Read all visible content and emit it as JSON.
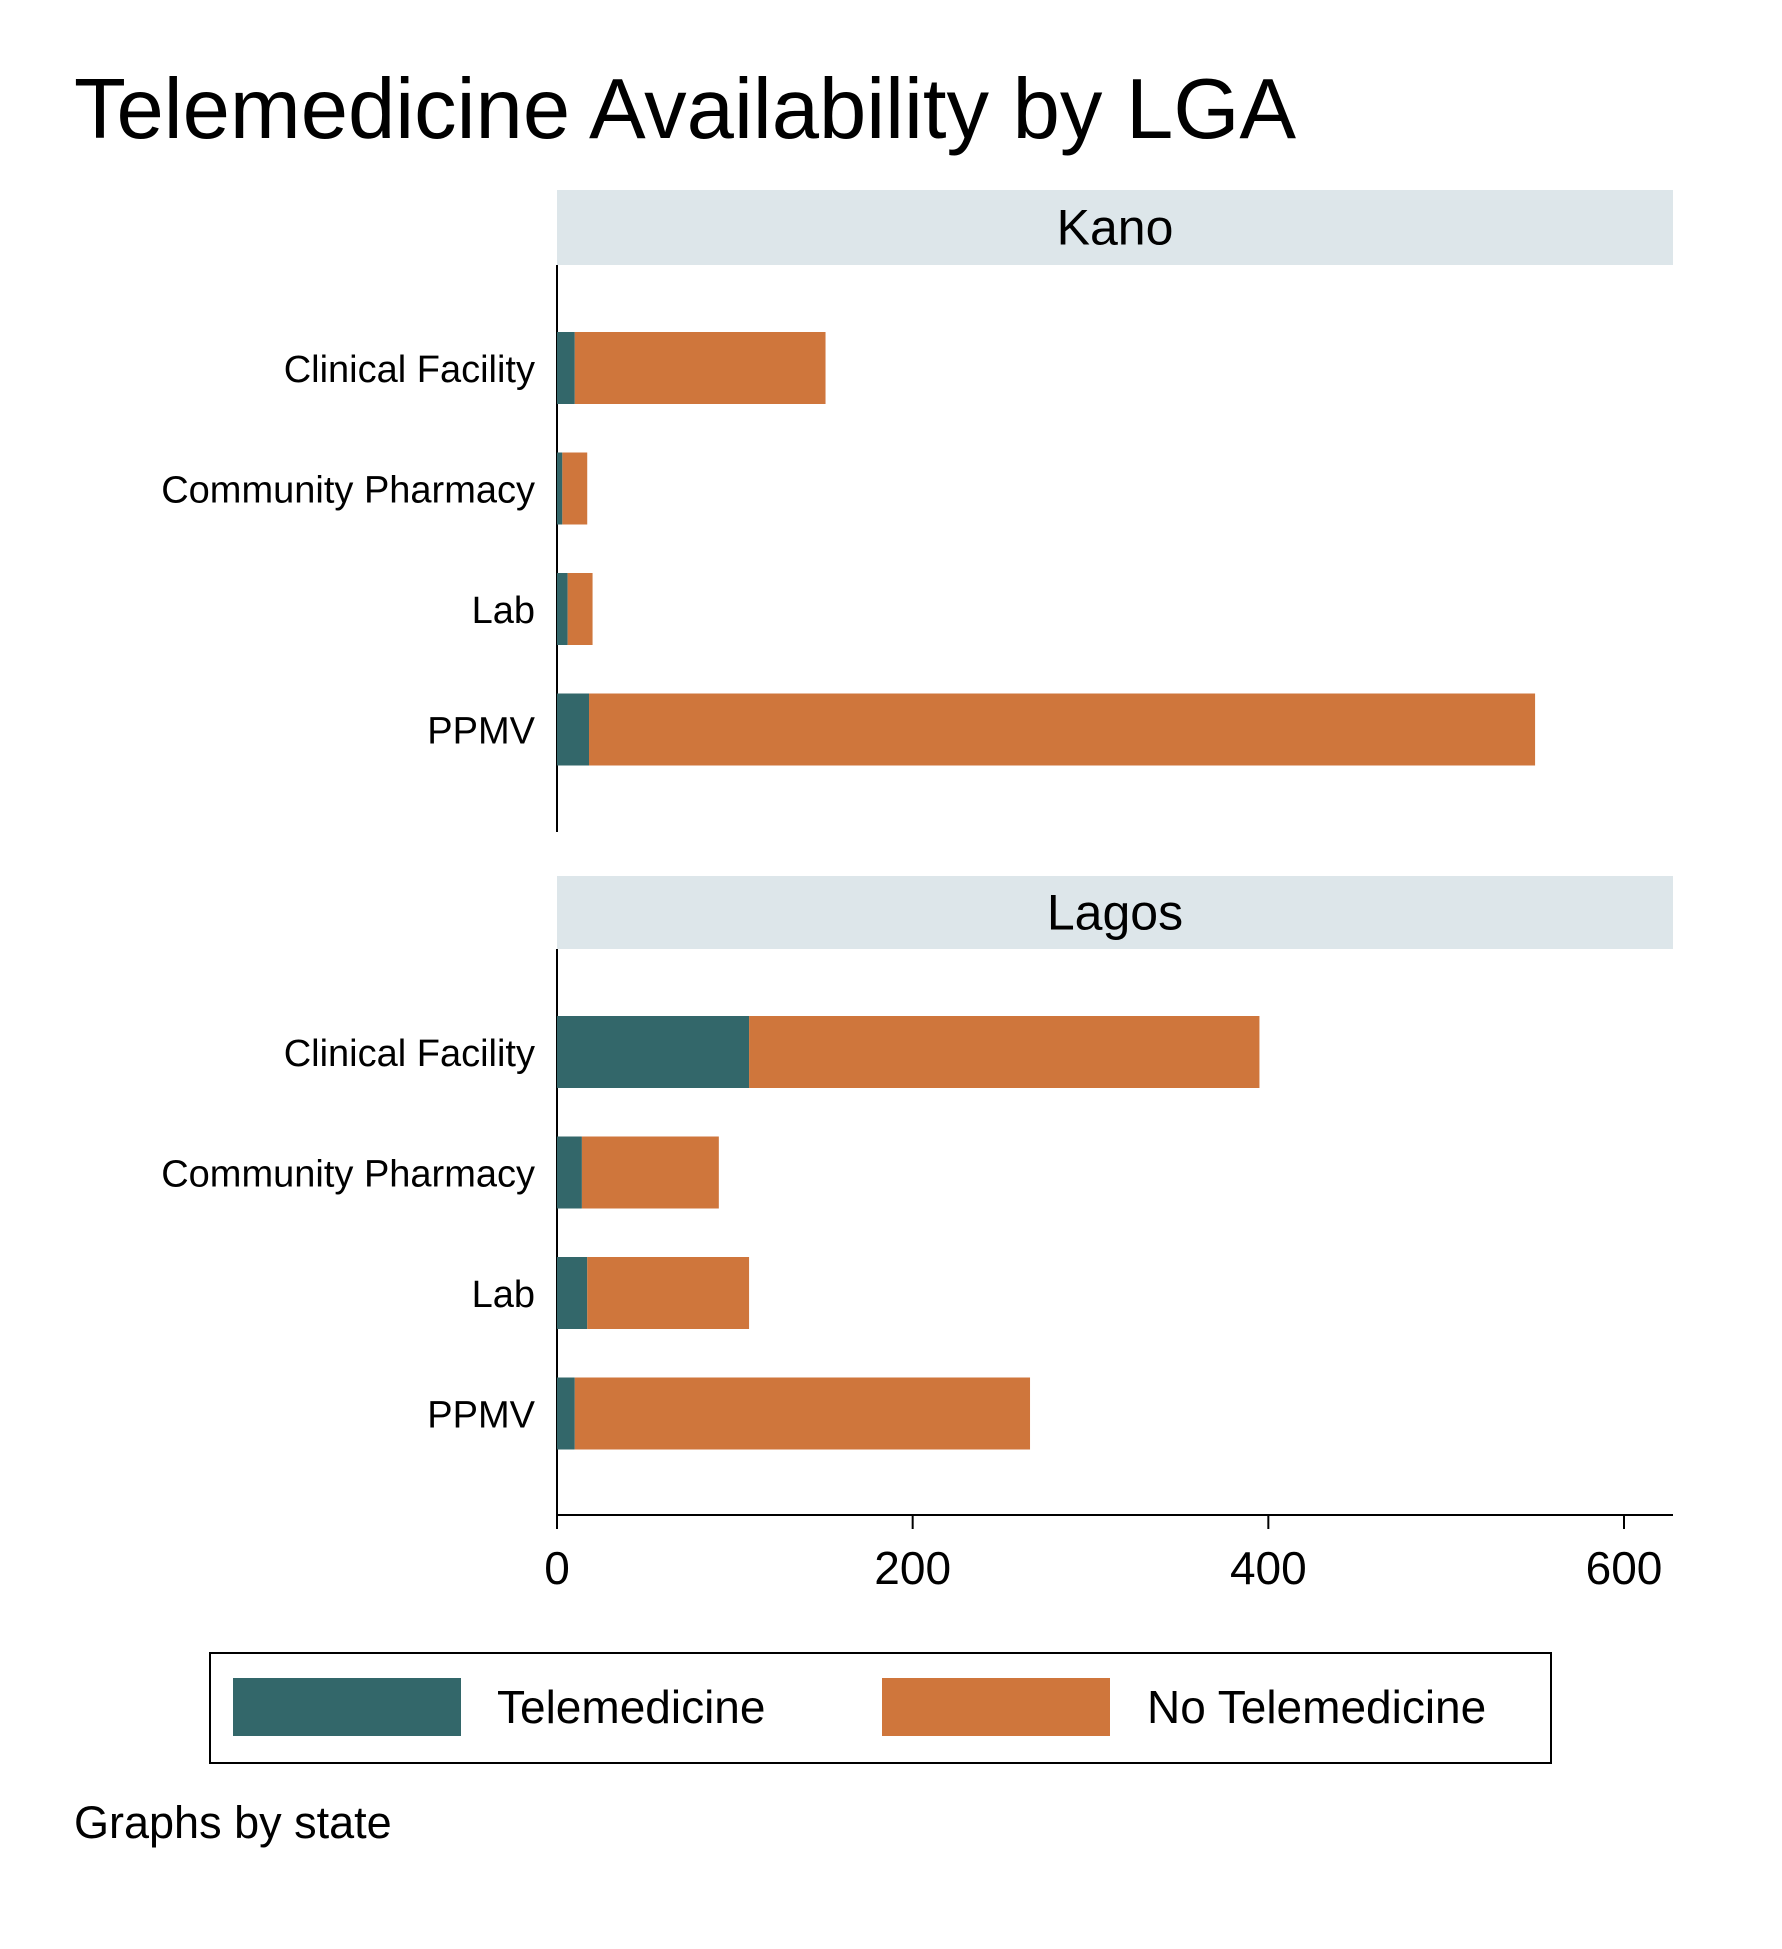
{
  "chart_data": {
    "type": "bar",
    "orientation": "horizontal",
    "stacked": true,
    "title": "Telemedicine Availability by LGA",
    "note": "Graphs by state",
    "xlim": [
      0,
      628
    ],
    "x_ticks": [
      0,
      200,
      400,
      600
    ],
    "x_tick_labels": [
      "0",
      "200",
      "400",
      "600"
    ],
    "grid": false,
    "legend_position": "bottom",
    "series": [
      {
        "name": "Telemedicine",
        "color": "#33676A"
      },
      {
        "name": "No Telemedicine",
        "color": "#CF763C"
      }
    ],
    "panels": [
      {
        "title": "Kano",
        "categories": [
          "Clinical Facility",
          "Community Pharmacy",
          "Lab",
          "PPMV"
        ],
        "values": [
          [
            10,
            141
          ],
          [
            3,
            14
          ],
          [
            6,
            14
          ],
          [
            18,
            532
          ]
        ]
      },
      {
        "title": "Lagos",
        "categories": [
          "Clinical Facility",
          "Community Pharmacy",
          "Lab",
          "PPMV"
        ],
        "values": [
          [
            108,
            287
          ],
          [
            14,
            77
          ],
          [
            17,
            91
          ],
          [
            10,
            256
          ]
        ]
      }
    ]
  }
}
